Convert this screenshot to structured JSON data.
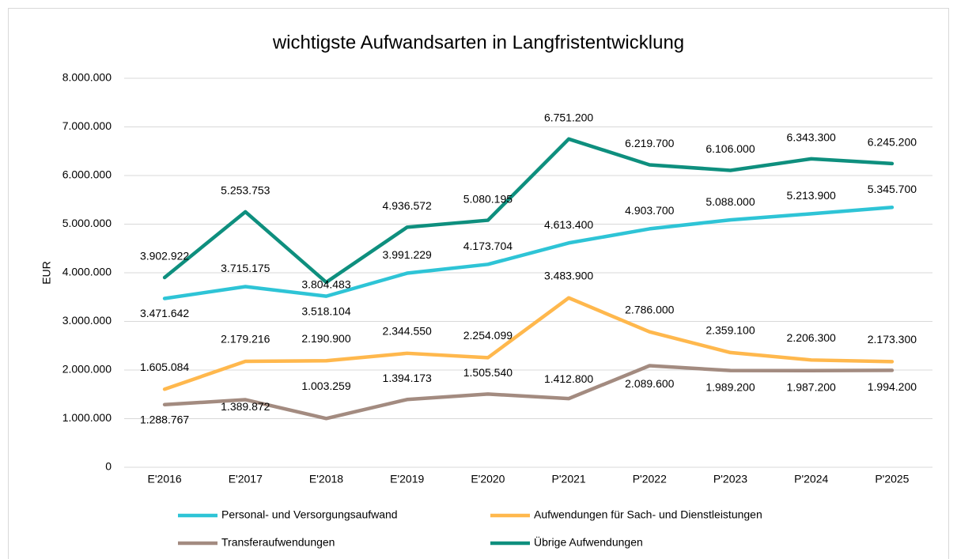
{
  "chart_data": {
    "type": "line",
    "title": "wichtigste Aufwandsarten in Langfristentwicklung",
    "y_label": "EUR",
    "categories": [
      "E'2016",
      "E'2017",
      "E'2018",
      "E'2019",
      "E'2020",
      "P'2021",
      "P'2022",
      "P'2023",
      "P'2024",
      "P'2025"
    ],
    "series": [
      {
        "name": "Personal- und Versorgungsaufwand",
        "color": "#2ec4d6",
        "values": [
          3471642,
          3715175,
          3518104,
          3991229,
          4173704,
          4613400,
          4903700,
          5088000,
          5213900,
          5345700
        ],
        "value_labels": [
          "3.471.642",
          "3.715.175",
          "3.518.104",
          "3.991.229",
          "4.173.704",
          "4.613.400",
          "4.903.700",
          "5.088.000",
          "5.213.900",
          "5.345.700"
        ]
      },
      {
        "name": "Aufwendungen für Sach- und Dienstleistungen",
        "color": "#ffb84d",
        "values": [
          1605084,
          2179216,
          2190900,
          2344550,
          2254099,
          3483900,
          2786000,
          2359100,
          2206300,
          2173300
        ],
        "value_labels": [
          "1.605.084",
          "2.179.216",
          "2.190.900",
          "2.344.550",
          "2.254.099",
          "3.483.900",
          "2.786.000",
          "2.359.100",
          "2.206.300",
          "2.173.300"
        ]
      },
      {
        "name": "Transferaufwendungen",
        "color": "#a38b80",
        "values": [
          1288767,
          1389872,
          1003259,
          1394173,
          1505540,
          1412800,
          2089600,
          1989200,
          1987200,
          1994200
        ],
        "value_labels": [
          "1.288.767",
          "1.389.872",
          "1.003.259",
          "1.394.173",
          "1.505.540",
          "1.412.800",
          "2.089.600",
          "1.989.200",
          "1.987.200",
          "1.994.200"
        ]
      },
      {
        "name": "Übrige Aufwendungen",
        "color": "#0e8f7e",
        "values": [
          3902922,
          5253753,
          3804483,
          4936572,
          5080195,
          6751200,
          6219700,
          6106000,
          6343300,
          6245200
        ],
        "value_labels": [
          "3.902.922",
          "5.253.753",
          "3.804.483",
          "4.936.572",
          "5.080.195",
          "6.751.200",
          "6.219.700",
          "6.106.000",
          "6.343.300",
          "6.245.200"
        ]
      }
    ],
    "ylim": [
      0,
      8000000
    ],
    "yticks": [
      0,
      {
        "value": 1000000,
        "label": "1.000.000"
      },
      {
        "value": 2000000,
        "label": "2.000.000"
      },
      {
        "value": 3000000,
        "label": "3.000.000"
      },
      {
        "value": 4000000,
        "label": "4.000.000"
      },
      {
        "value": 5000000,
        "label": "5.000.000"
      },
      {
        "value": 6000000,
        "label": "6.000.000"
      },
      {
        "value": 7000000,
        "label": "7.000.000"
      },
      {
        "value": 8000000,
        "label": "8.000.000"
      }
    ],
    "grid": true
  }
}
